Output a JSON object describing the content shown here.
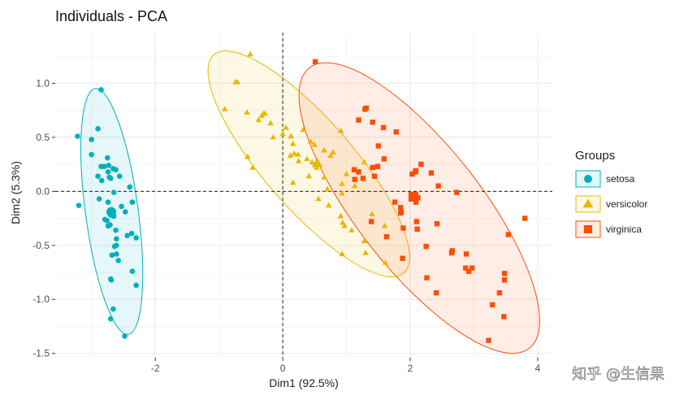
{
  "chart_data": {
    "type": "scatter",
    "title": "Individuals - PCA",
    "xlabel": "Dim1 (92.5%)",
    "ylabel": "Dim2 (5.3%)",
    "xlim": [
      -3.57,
      4.23
    ],
    "ylim": [
      -1.54,
      1.47
    ],
    "xticks": [
      -2,
      0,
      2,
      4
    ],
    "yticks": [
      -1.5,
      -1.0,
      -0.5,
      0.0,
      0.5,
      1.0
    ],
    "ytick_labels": [
      "-1.5",
      "-1.0",
      "-0.5",
      "0.0",
      "0.5",
      "1.0"
    ],
    "grid": true,
    "legend": {
      "title": "Groups",
      "placement": "right"
    },
    "reference_lines": {
      "x": 0,
      "y": 0,
      "style": "dashed"
    },
    "ellipse_level": 0.95,
    "series": [
      {
        "name": "setosa",
        "color": "#00AFBB",
        "shape": "circle",
        "centroid": [
          -2.69,
          -0.19
        ],
        "points": [
          [
            -2.85,
            0.94
          ],
          [
            -3.22,
            0.51
          ],
          [
            -3.0,
            0.48
          ],
          [
            -2.9,
            0.58
          ],
          [
            -3.0,
            0.34
          ],
          [
            -2.75,
            0.31
          ],
          [
            -2.8,
            0.23
          ],
          [
            -2.85,
            0.23
          ],
          [
            -2.73,
            0.24
          ],
          [
            -2.74,
            0.18
          ],
          [
            -2.66,
            0.21
          ],
          [
            -2.62,
            0.2
          ],
          [
            -2.9,
            0.14
          ],
          [
            -2.7,
            0.12
          ],
          [
            -2.72,
            0.13
          ],
          [
            -2.56,
            0.14
          ],
          [
            -2.84,
            0.1
          ],
          [
            -2.4,
            0.04
          ],
          [
            -2.65,
            -0.01
          ],
          [
            -2.88,
            -0.07
          ],
          [
            -3.2,
            -0.13
          ],
          [
            -2.74,
            -0.1
          ],
          [
            -2.36,
            -0.1
          ],
          [
            -2.53,
            -0.14
          ],
          [
            -2.69,
            -0.18
          ],
          [
            -2.67,
            -0.2
          ],
          [
            -2.7,
            -0.22
          ],
          [
            -2.65,
            -0.23
          ],
          [
            -2.47,
            -0.19
          ],
          [
            -2.79,
            -0.26
          ],
          [
            -2.76,
            -0.27
          ],
          [
            -2.74,
            -0.32
          ],
          [
            -2.71,
            -0.31
          ],
          [
            -2.62,
            -0.36
          ],
          [
            -2.61,
            -0.44
          ],
          [
            -2.44,
            -0.41
          ],
          [
            -2.37,
            -0.39
          ],
          [
            -2.3,
            -0.43
          ],
          [
            -2.64,
            -0.51
          ],
          [
            -2.61,
            -0.5
          ],
          [
            -2.68,
            -0.59
          ],
          [
            -2.61,
            -0.58
          ],
          [
            -2.58,
            -0.64
          ],
          [
            -2.36,
            -0.74
          ],
          [
            -2.7,
            -0.81
          ],
          [
            -2.69,
            -0.82
          ],
          [
            -2.3,
            -0.87
          ],
          [
            -2.66,
            -1.09
          ],
          [
            -2.7,
            -1.18
          ],
          [
            -2.48,
            -1.34
          ]
        ]
      },
      {
        "name": "versicolor",
        "color": "#E7B800",
        "shape": "triangle",
        "centroid": [
          0.54,
          0.26
        ],
        "points": [
          [
            -0.51,
            1.27
          ],
          [
            -0.74,
            1.01
          ],
          [
            -0.71,
            1.01
          ],
          [
            -0.91,
            0.76
          ],
          [
            -0.56,
            0.73
          ],
          [
            -0.38,
            0.66
          ],
          [
            -0.33,
            0.7
          ],
          [
            -0.3,
            0.72
          ],
          [
            -0.28,
            0.72
          ],
          [
            -0.19,
            0.63
          ],
          [
            0.05,
            0.59
          ],
          [
            0.32,
            0.57
          ],
          [
            0.0,
            0.53
          ],
          [
            -0.15,
            0.5
          ],
          [
            0.13,
            0.51
          ],
          [
            0.44,
            0.46
          ],
          [
            0.5,
            0.43
          ],
          [
            0.16,
            0.44
          ],
          [
            0.91,
            0.56
          ],
          [
            0.65,
            0.38
          ],
          [
            0.79,
            0.36
          ],
          [
            0.75,
            0.33
          ],
          [
            -0.55,
            0.32
          ],
          [
            0.24,
            0.34
          ],
          [
            0.38,
            0.3
          ],
          [
            0.18,
            0.35
          ],
          [
            0.12,
            0.33
          ],
          [
            0.46,
            0.27
          ],
          [
            0.25,
            0.28
          ],
          [
            -0.47,
            0.22
          ],
          [
            0.53,
            0.22
          ],
          [
            0.41,
            0.14
          ],
          [
            0.65,
            0.13
          ],
          [
            1.0,
            0.16
          ],
          [
            1.28,
            0.27
          ],
          [
            0.93,
            0.07
          ],
          [
            1.13,
            0.05
          ],
          [
            0.16,
            0.08
          ],
          [
            0.7,
            0.02
          ],
          [
            0.93,
            -0.02
          ],
          [
            0.56,
            -0.07
          ],
          [
            0.72,
            -0.13
          ],
          [
            0.91,
            -0.23
          ],
          [
            1.4,
            -0.21
          ],
          [
            0.94,
            -0.29
          ],
          [
            0.97,
            -0.32
          ],
          [
            1.08,
            -0.36
          ],
          [
            1.6,
            -0.32
          ],
          [
            1.28,
            -0.46
          ],
          [
            1.3,
            -0.57
          ],
          [
            0.93,
            -0.58
          ],
          [
            1.61,
            -0.66
          ]
        ]
      },
      {
        "name": "virginica",
        "color": "#FC4E07",
        "shape": "square",
        "centroid": [
          2.05,
          -0.05
        ],
        "points": [
          [
            0.51,
            1.2
          ],
          [
            1.29,
            0.76
          ],
          [
            1.31,
            0.77
          ],
          [
            1.19,
            0.66
          ],
          [
            1.41,
            0.64
          ],
          [
            1.58,
            0.59
          ],
          [
            1.78,
            0.55
          ],
          [
            1.5,
            0.42
          ],
          [
            1.59,
            0.3
          ],
          [
            1.49,
            0.23
          ],
          [
            1.12,
            0.2
          ],
          [
            1.19,
            0.18
          ],
          [
            1.41,
            0.22
          ],
          [
            1.44,
            0.14
          ],
          [
            1.26,
            0.12
          ],
          [
            1.13,
            0.11
          ],
          [
            2.17,
            0.25
          ],
          [
            2.03,
            0.16
          ],
          [
            2.33,
            0.17
          ],
          [
            2.08,
            0.18
          ],
          [
            2.09,
            0.19
          ],
          [
            2.44,
            0.05
          ],
          [
            2.73,
            -0.01
          ],
          [
            1.76,
            -0.1
          ],
          [
            1.85,
            -0.15
          ],
          [
            1.86,
            -0.19
          ],
          [
            2.09,
            -0.1
          ],
          [
            2.12,
            -0.06
          ],
          [
            1.85,
            -0.2
          ],
          [
            2.1,
            -0.28
          ],
          [
            1.89,
            -0.34
          ],
          [
            2.11,
            -0.35
          ],
          [
            2.42,
            -0.3
          ],
          [
            1.63,
            -0.42
          ],
          [
            2.25,
            -0.51
          ],
          [
            2.66,
            -0.55
          ],
          [
            3.54,
            -0.4
          ],
          [
            2.88,
            -0.58
          ],
          [
            2.65,
            -0.57
          ],
          [
            2.97,
            -0.71
          ],
          [
            2.92,
            -0.74
          ],
          [
            2.87,
            -0.71
          ],
          [
            3.48,
            -0.76
          ],
          [
            3.48,
            -0.82
          ],
          [
            1.88,
            -0.62
          ],
          [
            2.26,
            -0.8
          ],
          [
            3.4,
            -0.94
          ],
          [
            2.41,
            -0.94
          ],
          [
            3.29,
            -1.05
          ],
          [
            3.8,
            -0.25
          ],
          [
            3.47,
            -1.16
          ],
          [
            3.23,
            -1.38
          ],
          [
            1.39,
            -0.28
          ]
        ]
      }
    ]
  },
  "watermark": "知乎 @生信果"
}
